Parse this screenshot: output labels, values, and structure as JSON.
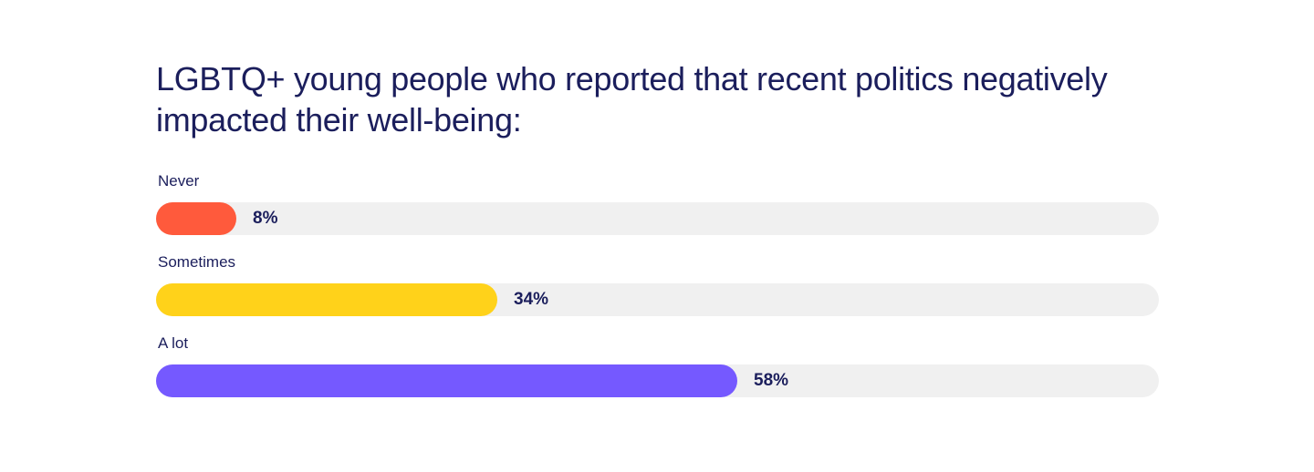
{
  "chart_data": {
    "type": "bar",
    "orientation": "horizontal",
    "title": "LGBTQ+ young people who reported that recent politics negatively impacted their well-being:",
    "categories": [
      "Never",
      "Sometimes",
      "A lot"
    ],
    "values": [
      8,
      34,
      58
    ],
    "value_labels": [
      "8%",
      "34%",
      "58%"
    ],
    "colors": [
      "#ff5a3c",
      "#ffd21a",
      "#7559ff"
    ],
    "track_color": "#f0f0f0",
    "xlim": [
      0,
      100
    ],
    "grid": false,
    "legend": "none"
  }
}
